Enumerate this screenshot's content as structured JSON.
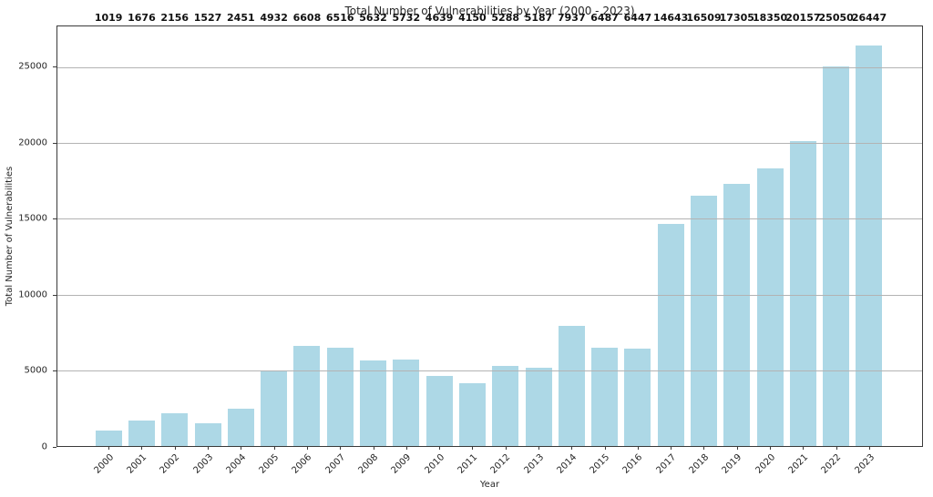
{
  "chart_data": {
    "type": "bar",
    "title": "Total Number of Vulnerabilities by Year (2000 - 2023)",
    "xlabel": "Year",
    "ylabel": "Total Number of Vulnerabilities",
    "categories": [
      "2000",
      "2001",
      "2002",
      "2003",
      "2004",
      "2005",
      "2006",
      "2007",
      "2008",
      "2009",
      "2010",
      "2011",
      "2012",
      "2013",
      "2014",
      "2015",
      "2016",
      "2017",
      "2018",
      "2019",
      "2020",
      "2021",
      "2022",
      "2023"
    ],
    "values": [
      1019,
      1676,
      2156,
      1527,
      2451,
      4932,
      6608,
      6516,
      5632,
      5732,
      4639,
      4150,
      5288,
      5187,
      7937,
      6487,
      6447,
      14643,
      16509,
      17305,
      18350,
      20157,
      25050,
      26447
    ],
    "yticks": [
      0,
      5000,
      10000,
      15000,
      20000,
      25000
    ],
    "ylim": [
      0,
      27700
    ],
    "bar_color": "#ADD8E6",
    "grid": "horizontal-above-bars",
    "legend": "none"
  }
}
